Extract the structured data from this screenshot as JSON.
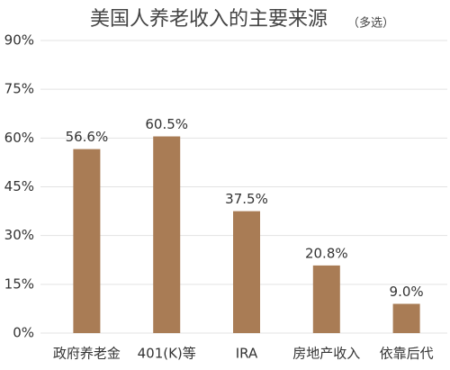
{
  "chart_data": {
    "type": "bar",
    "title": "美国人养老收入的主要来源",
    "subtitle": "（多选）",
    "categories": [
      "政府养老金",
      "401(K)等",
      "IRA",
      "房地产收入",
      "依靠后代"
    ],
    "values": [
      56.6,
      60.5,
      37.5,
      20.8,
      9.0
    ],
    "value_labels": [
      "56.6%",
      "60.5%",
      "37.5%",
      "20.8%",
      "9.0%"
    ],
    "color": "#a97c55",
    "ylim": [
      0,
      90
    ],
    "yticks": [
      {
        "value": 0,
        "label": "0%"
      },
      {
        "value": 15,
        "label": "15%"
      },
      {
        "value": 30,
        "label": "30%"
      },
      {
        "value": 45,
        "label": "45%"
      },
      {
        "value": 60,
        "label": "60%"
      },
      {
        "value": 75,
        "label": "75%"
      },
      {
        "value": 90,
        "label": "90%"
      }
    ],
    "grid": true
  }
}
